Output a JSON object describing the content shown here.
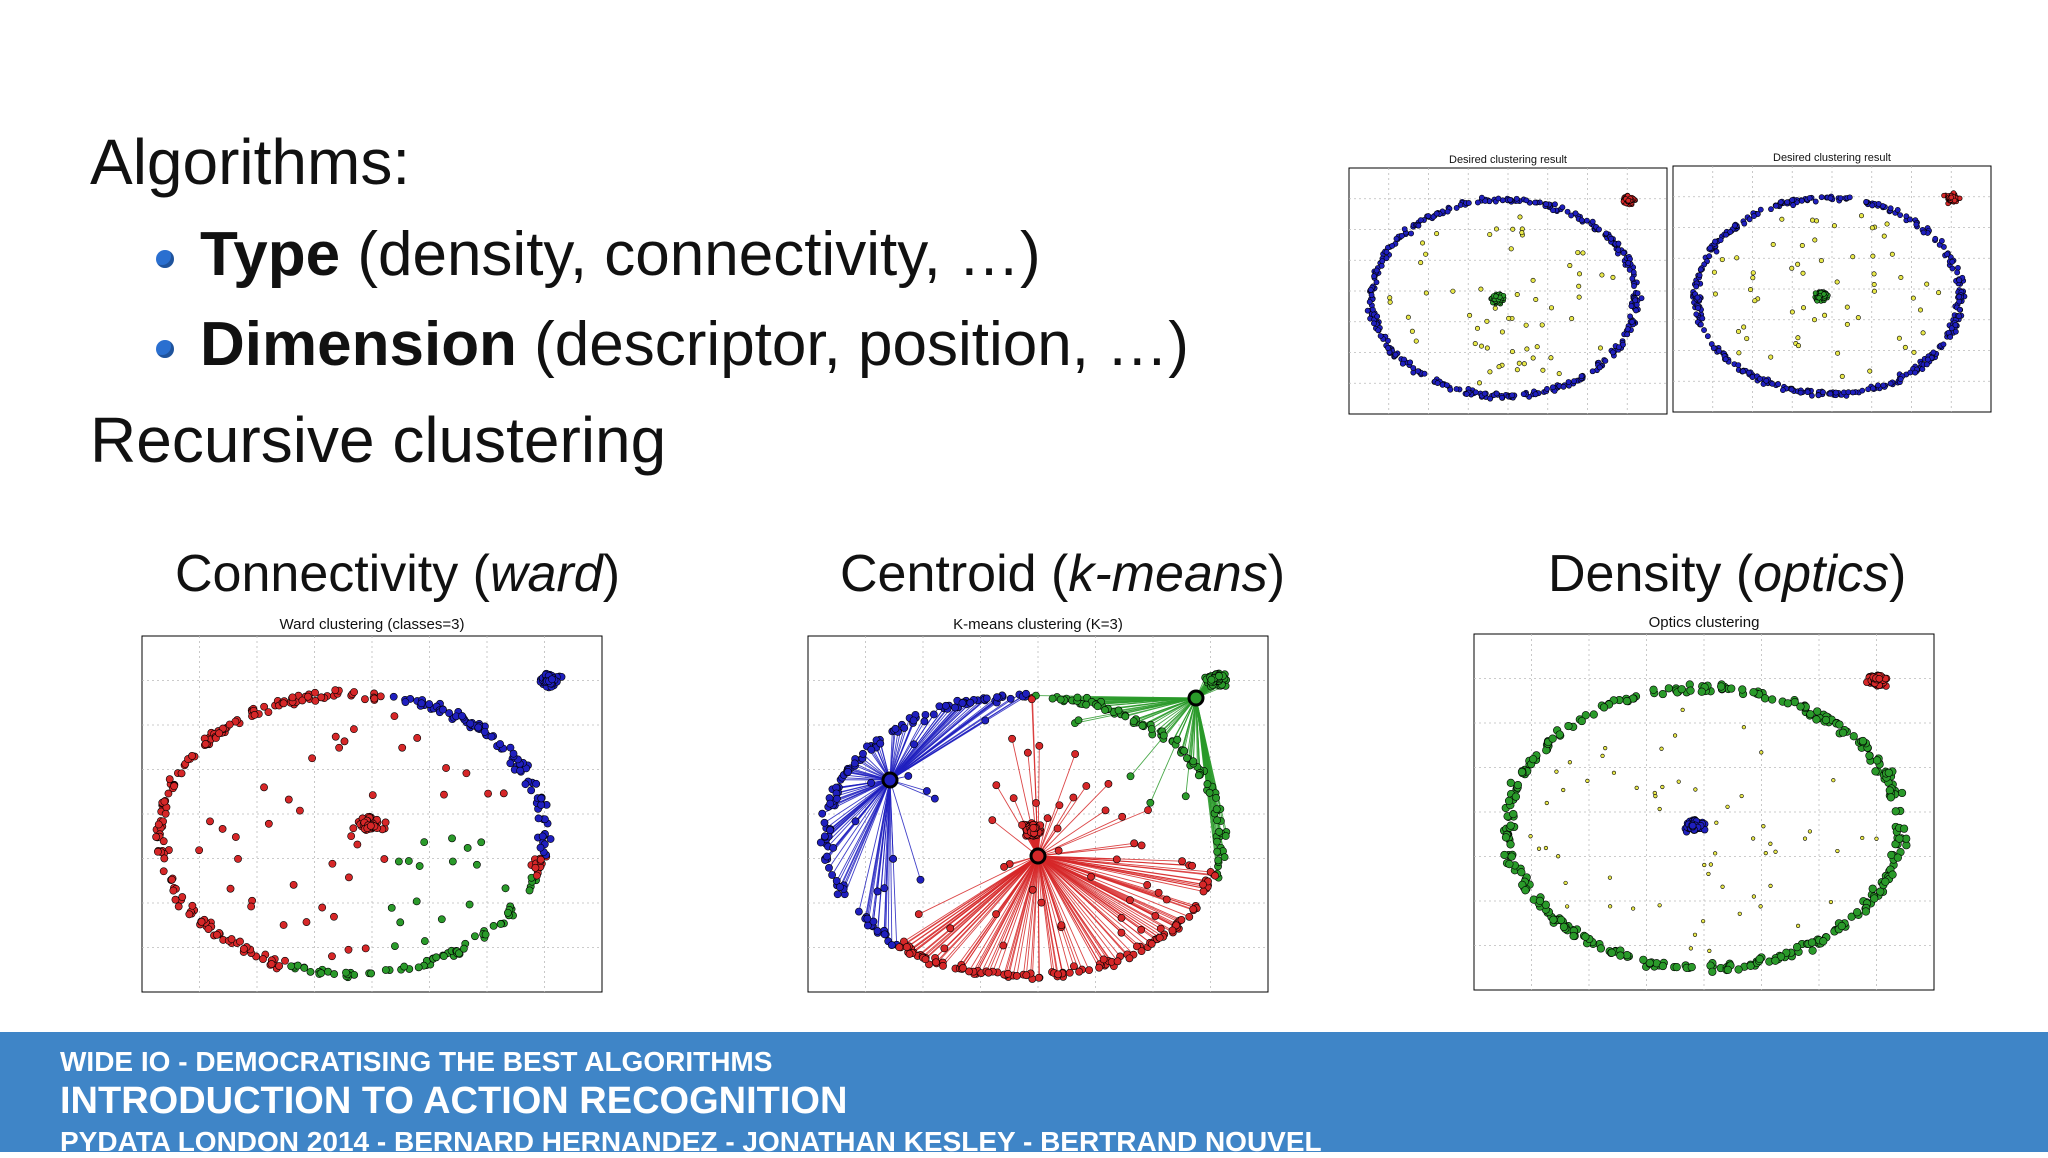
{
  "slide": {
    "heading1": "Algorithms:",
    "bullets": [
      {
        "bold": "Type",
        "rest": " (density, connectivity, …)"
      },
      {
        "bold": "Dimension",
        "rest": " (descriptor, position, …)"
      }
    ],
    "heading2": "Recursive clustering"
  },
  "panels": [
    {
      "title_main": "Connectivity (",
      "title_italic": "ward",
      "title_end": ")",
      "plot_title": "Ward clustering (classes=3)"
    },
    {
      "title_main": "Centroid (",
      "title_italic": "k-means",
      "title_end": ")",
      "plot_title": "K-means clustering (K=3)"
    },
    {
      "title_main": "Density (",
      "title_italic": "optics",
      "title_end": ")",
      "plot_title": "Optics clustering"
    }
  ],
  "top_plots": [
    {
      "plot_title": "Desired clustering result"
    },
    {
      "plot_title": "Desired clustering result"
    }
  ],
  "footer": {
    "line1": "WIDE IO - DEMOCRATISING THE BEST ALGORITHMS",
    "line2": "INTRODUCTION TO ACTION RECOGNITION",
    "line3": "PYDATA LONDON 2014   -  BERNARD HERNANDEZ - JONATHAN KESLEY - BERTRAND NOUVEL"
  },
  "colors": {
    "red": "#d62728",
    "blue": "#1f1fbf",
    "green": "#2a9a2a",
    "yellow": "#e8e84a",
    "accent": "#3f85c7",
    "bullet": "#2a6fd0"
  }
}
